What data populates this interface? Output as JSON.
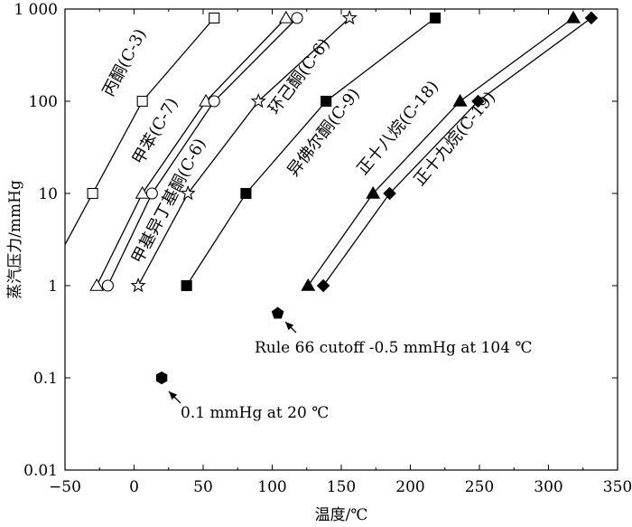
{
  "chart_data": {
    "type": "line",
    "xlabel": "温度/℃",
    "ylabel": "蒸汽压力/mmHg",
    "xlim": [
      -50,
      350
    ],
    "ylim": [
      0.01,
      1000
    ],
    "yscale": "log",
    "grid": false,
    "xticks": [
      -50,
      0,
      50,
      100,
      150,
      200,
      250,
      300,
      350
    ],
    "xtick_labels": [
      "−50",
      "0",
      "50",
      "100",
      "150",
      "200",
      "250",
      "300",
      "350"
    ],
    "yticks": [
      0.01,
      0.1,
      1,
      10,
      100,
      1000
    ],
    "ytick_labels": [
      "0.01",
      "0.1",
      "1",
      "10",
      "100",
      "1 000"
    ],
    "series": [
      {
        "name": "丙酮(C-3)",
        "marker": "open-square",
        "x": [
          -30,
          6,
          58
        ],
        "y": [
          10,
          100,
          800
        ]
      },
      {
        "name": "甲苯(C-7)",
        "marker": "open-triangle",
        "x": [
          -27,
          6,
          52,
          110
        ],
        "y": [
          1,
          10,
          100,
          800
        ]
      },
      {
        "name": "甲基异丁基酮(C-6)",
        "marker": "open-circle",
        "x": [
          -19,
          13,
          58,
          118
        ],
        "y": [
          1,
          10,
          100,
          800
        ]
      },
      {
        "name": "环己酮(C-6)",
        "marker": "open-star",
        "x": [
          3,
          39,
          90,
          156
        ],
        "y": [
          1,
          10,
          100,
          800
        ]
      },
      {
        "name": "异佛尔酮(C-9)",
        "marker": "filled-square",
        "x": [
          38,
          81,
          139,
          218
        ],
        "y": [
          1,
          10,
          100,
          800
        ]
      },
      {
        "name": "正十八烷(C-18)",
        "marker": "filled-triangle",
        "x": [
          126,
          173,
          236,
          318
        ],
        "y": [
          1,
          10,
          100,
          800
        ]
      },
      {
        "name": "正十九烷(C-19)",
        "marker": "filled-diamond",
        "x": [
          137,
          185,
          249,
          331
        ],
        "y": [
          1,
          10,
          100,
          800
        ]
      }
    ],
    "points": [
      {
        "marker": "filled-pentagon",
        "x": 104,
        "y": 0.5,
        "label": "Rule 66 cutoff -0.5 mmHg at 104 ℃"
      },
      {
        "marker": "filled-hexagon",
        "x": 20,
        "y": 0.1,
        "label": "0.1 mmHg at 20 ℃"
      }
    ]
  }
}
